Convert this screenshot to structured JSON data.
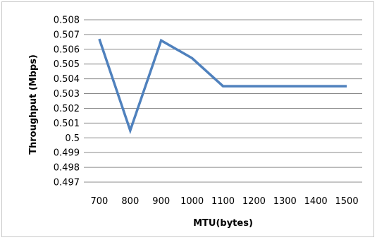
{
  "chart_data": {
    "type": "line",
    "title": "",
    "xlabel": "MTU(bytes)",
    "ylabel": "Throughput (Mbps)",
    "categories": [
      "700",
      "800",
      "900",
      "1000",
      "1100",
      "1200",
      "1300",
      "1400",
      "1500"
    ],
    "series": [
      {
        "values": [
          0.5067,
          0.5005,
          0.5066,
          0.5054,
          0.5035,
          0.5035,
          0.5035,
          0.5035,
          0.5035
        ]
      }
    ],
    "ylim": [
      0.497,
      0.508
    ],
    "ytick_labels": [
      "0.508",
      "0.507",
      "0.506",
      "0.505",
      "0.504",
      "0.503",
      "0.502",
      "0.501",
      "0.5",
      "0.499",
      "0.498",
      "0.497"
    ],
    "grid": true,
    "legend": "none",
    "line_color": "#4f81bd",
    "grid_color": "#8c8c8c"
  }
}
